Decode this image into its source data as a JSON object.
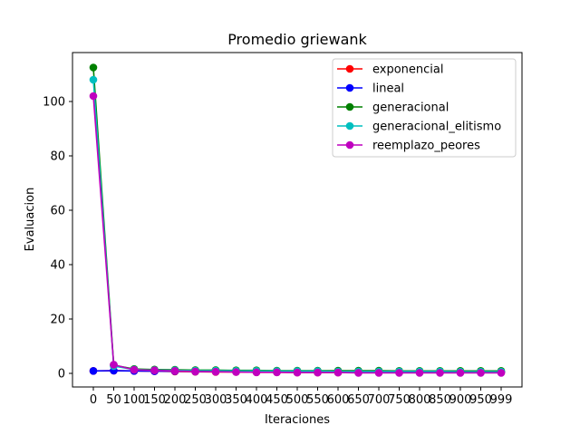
{
  "chart_data": {
    "type": "line",
    "title": "Promedio griewank",
    "xlabel": "Iteraciones",
    "ylabel": "Evaluacion",
    "ylim": [
      -5,
      118
    ],
    "grid": false,
    "legend_position": "top-right",
    "categories": [
      "0",
      "50",
      "100",
      "150",
      "200",
      "250",
      "300",
      "350",
      "400",
      "450",
      "500",
      "550",
      "600",
      "650",
      "700",
      "750",
      "800",
      "850",
      "900",
      "950",
      "999"
    ],
    "y_ticks": [
      0,
      20,
      40,
      60,
      80,
      100
    ],
    "series": [
      {
        "name": "exponencial",
        "color": "#ff0000",
        "values": [
          0.9,
          1.0,
          0.9,
          0.8,
          0.7,
          0.6,
          0.5,
          0.5,
          0.4,
          0.4,
          0.3,
          0.3,
          0.3,
          0.3,
          0.3,
          0.3,
          0.3,
          0.3,
          0.3,
          0.3,
          0.3
        ]
      },
      {
        "name": "lineal",
        "color": "#0000ff",
        "values": [
          0.9,
          1.0,
          0.9,
          0.8,
          0.8,
          0.7,
          0.7,
          0.6,
          0.6,
          0.5,
          0.5,
          0.5,
          0.5,
          0.4,
          0.4,
          0.4,
          0.4,
          0.4,
          0.4,
          0.4,
          0.4
        ]
      },
      {
        "name": "generacional",
        "color": "#008000",
        "values": [
          112.5,
          3.0,
          1.6,
          1.4,
          1.3,
          1.2,
          1.2,
          1.1,
          1.1,
          1.0,
          1.0,
          1.0,
          1.0,
          1.0,
          1.0,
          0.9,
          0.9,
          0.9,
          0.9,
          0.9,
          0.9
        ]
      },
      {
        "name": "generacional_elitismo",
        "color": "#00bfbf",
        "values": [
          108.0,
          2.7,
          1.4,
          1.2,
          1.1,
          1.0,
          1.0,
          0.9,
          0.9,
          0.8,
          0.8,
          0.8,
          0.7,
          0.7,
          0.7,
          0.7,
          0.7,
          0.7,
          0.6,
          0.6,
          0.6
        ]
      },
      {
        "name": "reemplazo_peores",
        "color": "#bf00bf",
        "values": [
          102.0,
          3.2,
          1.3,
          1.1,
          0.9,
          0.7,
          0.6,
          0.5,
          0.4,
          0.4,
          0.3,
          0.3,
          0.3,
          0.2,
          0.2,
          0.2,
          0.2,
          0.2,
          0.2,
          0.2,
          0.2
        ]
      }
    ]
  }
}
